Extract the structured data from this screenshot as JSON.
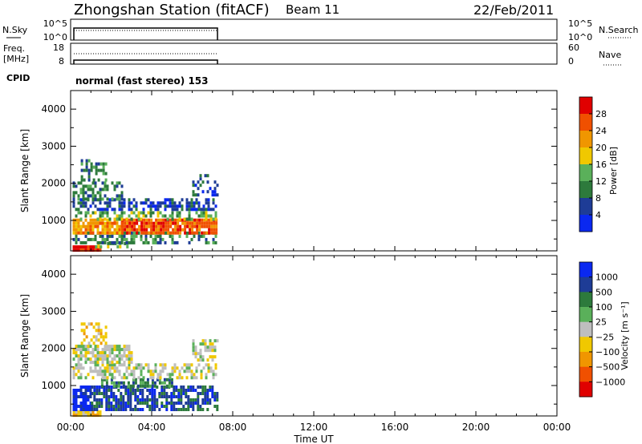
{
  "header": {
    "station": "Zhongshan Station (fitACF)",
    "beam": "Beam 11",
    "date": "22/Feb/2011"
  },
  "nsky_panel": {
    "left_label": "N.Sky",
    "right_label": "N.Search",
    "left_ticks": [
      "10^5",
      "10^0"
    ],
    "right_ticks": [
      "10^5",
      "10^0"
    ]
  },
  "freq_panel": {
    "left_label_1": "Freq.",
    "left_label_2": "[MHz]",
    "right_label": "Nave",
    "left_ticks": [
      "18",
      "8"
    ],
    "right_ticks": [
      "60",
      "0"
    ]
  },
  "cpid": {
    "label": "CPID",
    "mode": "normal (fast stereo) 153"
  },
  "colors": {
    "power": [
      "#0a28f0",
      "#1e3c96",
      "#2d7a3c",
      "#5ab05a",
      "#f0c800",
      "#f09600",
      "#f05000",
      "#e00000"
    ],
    "velocity": [
      "#e00000",
      "#f05000",
      "#f09600",
      "#f0c800",
      "#bebebe",
      "#5ab05a",
      "#2d7a3c",
      "#1e3c96",
      "#0a28f0"
    ]
  },
  "chart_data": [
    {
      "type": "heatmap",
      "name": "power",
      "xlabel": "Time UT",
      "ylabel": "Slant Range [km]",
      "x_ticks": [
        "00:00",
        "04:00",
        "08:00",
        "12:00",
        "16:00",
        "20:00",
        "00:00"
      ],
      "xlim_hours": [
        0,
        24
      ],
      "ylim_km": [
        180,
        4500
      ],
      "y_ticks": [
        1000,
        2000,
        3000,
        4000
      ],
      "data_extent_hours": [
        0,
        7.2
      ],
      "colorbar": {
        "label": "Power [dB]",
        "ticks": [
          4,
          8,
          12,
          16,
          20,
          24,
          28
        ],
        "range": [
          0,
          32
        ]
      },
      "features": [
        {
          "t0": 0.1,
          "t1": 1.5,
          "r0": 210,
          "r1": 330,
          "level": 7,
          "density": 0.95
        },
        {
          "t0": 1.2,
          "t1": 2.8,
          "r0": 260,
          "r1": 420,
          "level": 3,
          "density": 0.6
        },
        {
          "t0": 0.1,
          "t1": 7.2,
          "r0": 380,
          "r1": 700,
          "level": 2,
          "density": 0.55
        },
        {
          "t0": 0.1,
          "t1": 2.5,
          "r0": 650,
          "r1": 1050,
          "level": 5,
          "density": 0.85
        },
        {
          "t0": 2.5,
          "t1": 7.2,
          "r0": 650,
          "r1": 1050,
          "level": 6,
          "density": 0.85
        },
        {
          "t0": 0.1,
          "t1": 7.2,
          "r0": 1050,
          "r1": 1250,
          "level": 3,
          "density": 0.5
        },
        {
          "t0": 0.1,
          "t1": 7.2,
          "r0": 1300,
          "r1": 1600,
          "level": 1,
          "density": 0.6
        },
        {
          "t0": 0.1,
          "t1": 2.5,
          "r0": 1600,
          "r1": 2050,
          "level": 2,
          "density": 0.55
        },
        {
          "t0": 0.5,
          "t1": 1.8,
          "r0": 2050,
          "r1": 2650,
          "level": 2,
          "density": 0.4
        },
        {
          "t0": 6.0,
          "t1": 7.2,
          "r0": 1700,
          "r1": 2250,
          "level": 1,
          "density": 0.45
        }
      ]
    },
    {
      "type": "heatmap",
      "name": "velocity",
      "xlabel": "Time UT",
      "ylabel": "Slant Range [km]",
      "x_ticks": [
        "00:00",
        "04:00",
        "08:00",
        "12:00",
        "16:00",
        "20:00",
        "00:00"
      ],
      "xlim_hours": [
        0,
        24
      ],
      "ylim_km": [
        180,
        4500
      ],
      "y_ticks": [
        1000,
        2000,
        3000,
        4000
      ],
      "data_extent_hours": [
        0,
        7.2
      ],
      "colorbar": {
        "label": "Velocity [m s⁻¹]",
        "ticks": [
          "1000",
          "500",
          "100",
          "25",
          "−25",
          "−100",
          "−500",
          "−1000"
        ]
      },
      "features": [
        {
          "t0": 0.1,
          "t1": 1.5,
          "r0": 210,
          "r1": 330,
          "level": 3,
          "density": 0.9
        },
        {
          "t0": 0.1,
          "t1": 1.0,
          "r0": 330,
          "r1": 1000,
          "level": 8,
          "density": 0.85
        },
        {
          "t0": 1.0,
          "t1": 7.2,
          "r0": 330,
          "r1": 1000,
          "level": 7,
          "density": 0.7
        },
        {
          "t0": 1.5,
          "t1": 5.0,
          "r0": 1000,
          "r1": 1200,
          "level": 6,
          "density": 0.6
        },
        {
          "t0": 0.1,
          "t1": 7.2,
          "r0": 1200,
          "r1": 1600,
          "level": 4,
          "density": 0.55
        },
        {
          "t0": 0.1,
          "t1": 3.0,
          "r0": 1600,
          "r1": 2100,
          "level": 4,
          "density": 0.8
        },
        {
          "t0": 0.5,
          "t1": 1.8,
          "r0": 2100,
          "r1": 2700,
          "level": 3,
          "density": 0.45
        },
        {
          "t0": 6.0,
          "t1": 7.2,
          "r0": 1700,
          "r1": 2250,
          "level": 4,
          "density": 0.5
        }
      ]
    }
  ]
}
